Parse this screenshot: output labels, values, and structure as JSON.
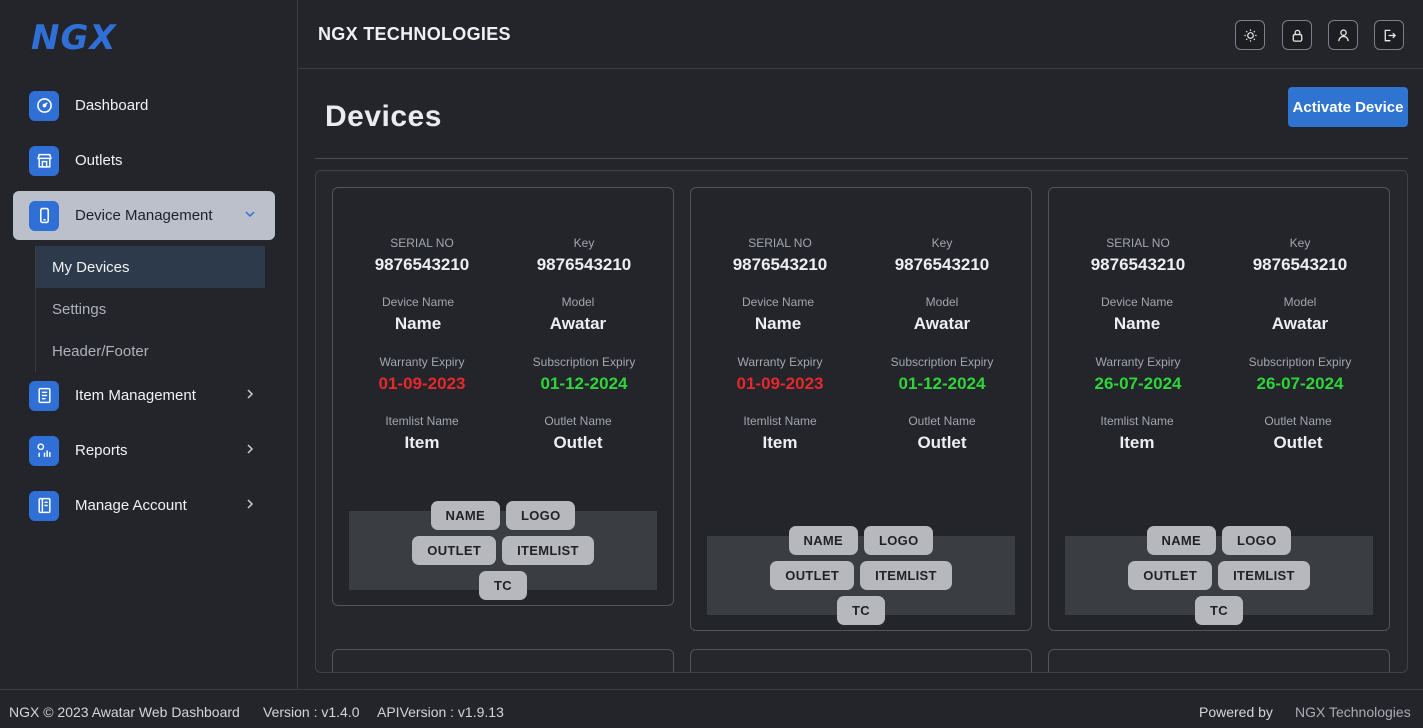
{
  "app": {
    "logo": "NGX",
    "brand": "NGX TECHNOLOGIES",
    "accent_color": "#2f6fd6"
  },
  "sidebar": {
    "items": [
      {
        "label": "Dashboard",
        "icon": "gauge-icon"
      },
      {
        "label": "Outlets",
        "icon": "store-icon"
      },
      {
        "label": "Device Management",
        "icon": "phone-icon",
        "expanded": true
      },
      {
        "label": "Item Management",
        "icon": "document-icon"
      },
      {
        "label": "Reports",
        "icon": "reports-icon"
      },
      {
        "label": "Manage Account",
        "icon": "account-book-icon"
      }
    ],
    "sub_items": [
      "My Devices",
      "Settings",
      "Header/Footer"
    ],
    "active_sub": "My Devices"
  },
  "header": {
    "buttons": [
      "theme-toggle",
      "lock",
      "profile",
      "logout"
    ]
  },
  "main": {
    "title": "Devices",
    "activate_label": "Activate Device"
  },
  "labels": {
    "serial": "SERIAL NO",
    "key": "Key",
    "device_name": "Device Name",
    "model": "Model",
    "warranty": "Warranty Expiry",
    "subscription": "Subscription Expiry",
    "itemlist": "Itemlist Name",
    "outlet": "Outlet Name"
  },
  "devices": [
    {
      "serial": "9876543210",
      "key": "9876543210",
      "name": "Name",
      "model": "Awatar",
      "warranty": "01-09-2023",
      "warranty_status": "expired",
      "subscription": "01-12-2024",
      "subscription_status": "active",
      "itemlist": "Item",
      "outlet": "Outlet"
    },
    {
      "serial": "9876543210",
      "key": "9876543210",
      "name": "Name",
      "model": "Awatar",
      "warranty": "01-09-2023",
      "warranty_status": "expired",
      "subscription": "01-12-2024",
      "subscription_status": "active",
      "itemlist": "Item",
      "outlet": "Outlet"
    },
    {
      "serial": "9876543210",
      "key": "9876543210",
      "name": "Name",
      "model": "Awatar",
      "warranty": "26-07-2024",
      "warranty_status": "active",
      "subscription": "26-07-2024",
      "subscription_status": "active",
      "itemlist": "Item",
      "outlet": "Outlet"
    }
  ],
  "chips": [
    "NAME",
    "LOGO",
    "OUTLET",
    "ITEMLIST",
    "TC"
  ],
  "status_colors": {
    "expired": "#e5282d",
    "active": "#2fd43a"
  },
  "footer": {
    "copyright": "NGX © 2023 Awatar Web Dashboard",
    "version": "Version : v1.4.0",
    "api_version": "APIVersion : v1.9.13",
    "powered_by": "Powered by",
    "company": "NGX Technologies"
  }
}
